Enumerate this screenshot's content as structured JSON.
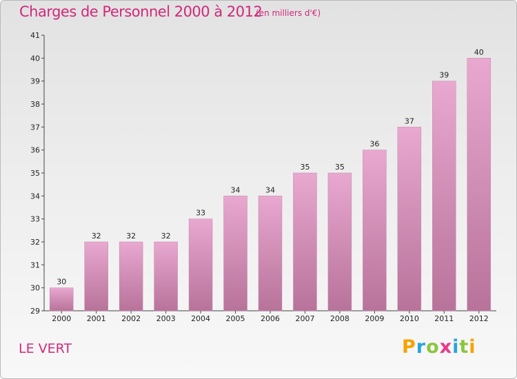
{
  "title": "Charges de Personnel 2000 à 2012",
  "unit_note": "(en milliers d'€)",
  "commune": "LE VERT",
  "logo": {
    "text": "Proxiti",
    "letters": [
      "P",
      "r",
      "o",
      "x",
      "i",
      "t",
      "i"
    ],
    "colors": [
      "#f5a300",
      "#2aa4dc",
      "#8cc63f",
      "#e8388a",
      "#2aa4dc",
      "#8cc63f",
      "#f5a300"
    ]
  },
  "colors": {
    "title": "#d0287a",
    "bar_top": "#e8a8d0",
    "bar_bottom": "#b8739a"
  },
  "chart_data": {
    "type": "bar",
    "title": "Charges de Personnel 2000 à 2012",
    "subtitle": "(en milliers d'€)",
    "xlabel": "",
    "ylabel": "",
    "categories": [
      "2000",
      "2001",
      "2002",
      "2003",
      "2004",
      "2005",
      "2006",
      "2007",
      "2008",
      "2009",
      "2010",
      "2011",
      "2012"
    ],
    "values": [
      30,
      32,
      32,
      32,
      33,
      34,
      34,
      35,
      35,
      36,
      37,
      39,
      40
    ],
    "ylim": [
      29,
      41
    ],
    "yticks": [
      29,
      30,
      31,
      32,
      33,
      34,
      35,
      36,
      37,
      38,
      39,
      40,
      41
    ],
    "grid": false,
    "legend": "none"
  }
}
